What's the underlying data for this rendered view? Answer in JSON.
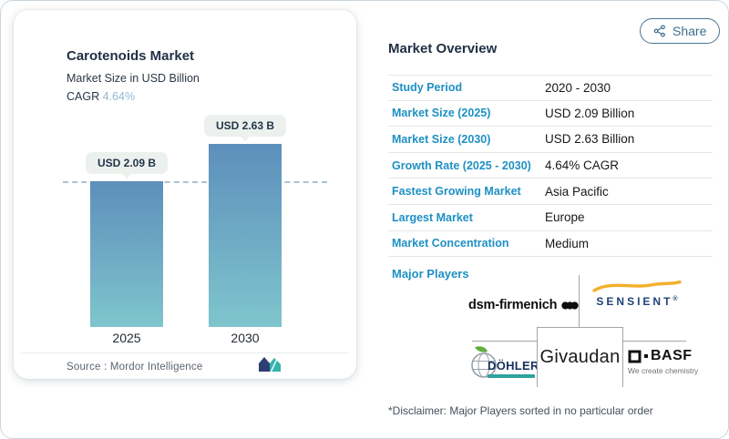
{
  "page": {
    "share_label": "Share"
  },
  "chart_card": {
    "title": "Carotenoids Market",
    "subtitle": "Market Size in USD Billion",
    "cagr_label": "CAGR",
    "cagr_value": "4.64%",
    "source_label": "Source :",
    "source_value": "Mordor Intelligence"
  },
  "chart_data": {
    "type": "bar",
    "title": "Carotenoids Market",
    "ylabel": "Market Size in USD Billion",
    "unit": "USD Billion",
    "categories": [
      "2025",
      "2030"
    ],
    "values": [
      2.09,
      2.63
    ],
    "bar_labels": [
      "USD 2.09 B",
      "USD 2.63 B"
    ],
    "reference_line_value": 2.09,
    "bar_color_top": "#5d8fbb",
    "bar_color_bottom": "#7fc5cd",
    "legend": "off",
    "grid": "off"
  },
  "overview": {
    "title": "Market Overview",
    "rows": [
      {
        "label": "Study Period",
        "value": "2020 - 2030"
      },
      {
        "label": "Market Size (2025)",
        "value": "USD 2.09 Billion"
      },
      {
        "label": "Market Size (2030)",
        "value": "USD 2.63 Billion"
      },
      {
        "label": "Growth Rate (2025 - 2030)",
        "value": "4.64% CAGR"
      },
      {
        "label": "Fastest Growing Market",
        "value": "Asia Pacific"
      },
      {
        "label": "Largest Market",
        "value": "Europe"
      },
      {
        "label": "Market Concentration",
        "value": "Medium"
      }
    ],
    "major_players_label": "Major Players",
    "players": {
      "dsm": {
        "name": "dsm-firmenich"
      },
      "sensient": {
        "name": "SENSIENT",
        "reg": "®"
      },
      "dohler": {
        "name": "DÖHLER"
      },
      "givaudan": {
        "name": "Givaudan"
      },
      "basf": {
        "name": "BASF",
        "tagline": "We create chemistry"
      }
    },
    "disclaimer": "*Disclaimer: Major Players sorted in no particular order"
  },
  "colors": {
    "accent_blue": "#1e90c4",
    "heading_navy": "#1f3044",
    "share_blue": "#3d6e8e",
    "cagr_value_blue": "#8fb8d8",
    "sensient_swoosh_yellow": "#f3b02c",
    "mordor_navy": "#2d3f72",
    "mordor_teal": "#35b3ad"
  }
}
